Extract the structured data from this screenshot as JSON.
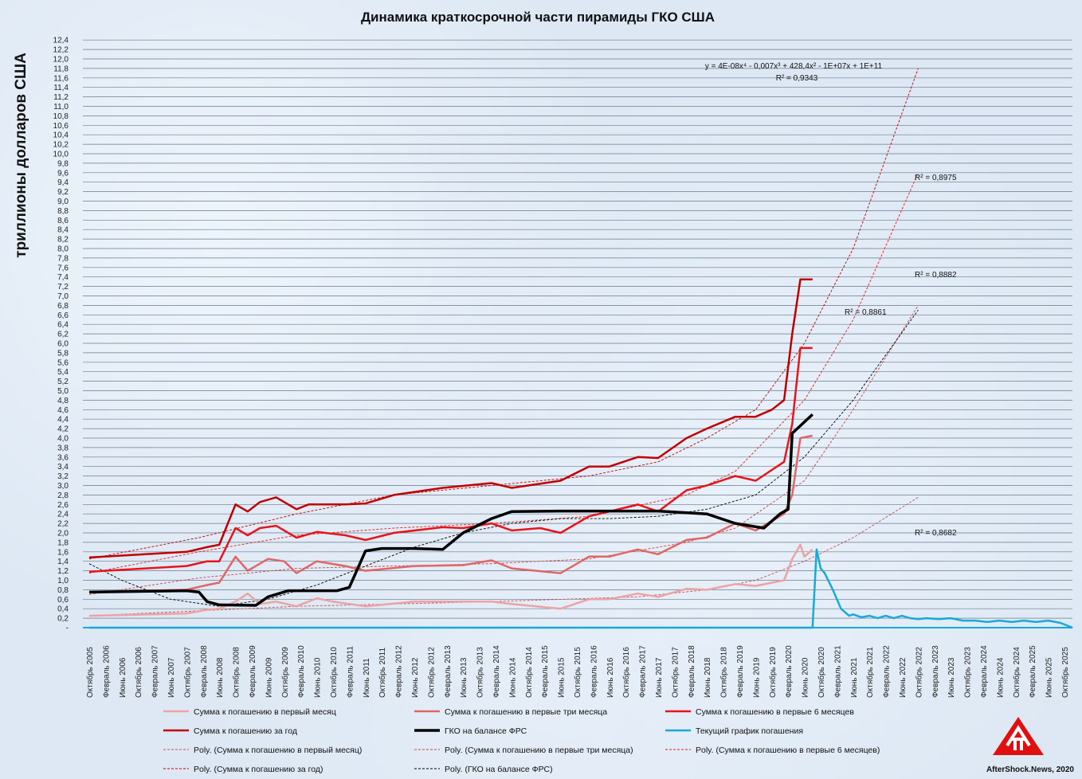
{
  "chart_data": {
    "type": "line",
    "title": "Динамика краткосрочной части пирамиды ГКО США",
    "ylabel": "триллионы долларов США",
    "xlabel": "",
    "ylim": [
      0,
      12.4
    ],
    "grid": true,
    "legend_position": "bottom",
    "yticks": [
      "-",
      "0,2",
      "0,4",
      "0,6",
      "0,8",
      "1,0",
      "1,2",
      "1,4",
      "1,6",
      "1,8",
      "2,0",
      "2,2",
      "2,4",
      "2,6",
      "2,8",
      "3,0",
      "3,2",
      "3,4",
      "3,6",
      "3,8",
      "4,0",
      "4,2",
      "4,4",
      "4,6",
      "4,8",
      "5,0",
      "5,2",
      "5,4",
      "5,6",
      "5,8",
      "6,0",
      "6,2",
      "6,4",
      "6,6",
      "6,8",
      "7,0",
      "7,2",
      "7,4",
      "7,6",
      "7,8",
      "8,0",
      "8,2",
      "8,4",
      "8,6",
      "8,8",
      "9,0",
      "9,2",
      "9,4",
      "9,6",
      "9,8",
      "10,0",
      "10,2",
      "10,4",
      "10,6",
      "10,8",
      "11,0",
      "11,2",
      "11,4",
      "11,6",
      "11,8",
      "12,0",
      "12,2",
      "12,4"
    ],
    "xticks": [
      "Октябрь 2005",
      "Февраль 2006",
      "Июнь 2006",
      "Октябрь 2006",
      "Февраль 2007",
      "Июнь 2007",
      "Октябрь 2007",
      "Февраль 2008",
      "Июнь 2008",
      "Октябрь 2008",
      "Февраль 2009",
      "Июнь 2009",
      "Октябрь 2009",
      "Февраль 2010",
      "Июнь 2010",
      "Октябрь 2010",
      "Февраль 2011",
      "Июнь 2011",
      "Октябрь 2011",
      "Февраль 2012",
      "Июнь 2012",
      "Октябрь 2012",
      "Февраль 2013",
      "Июнь 2013",
      "Октябрь 2013",
      "Февраль 2014",
      "Июнь 2014",
      "Октябрь 2014",
      "Февраль 2015",
      "Июнь 2015",
      "Октябрь 2015",
      "Февраль 2016",
      "Июнь 2016",
      "Октябрь 2016",
      "Февраль 2017",
      "Июнь 2017",
      "Октябрь 2017",
      "Февраль 2018",
      "Июнь 2018",
      "Октябрь 2018",
      "Февраль 2019",
      "Июнь 2019",
      "Октябрь 2019",
      "Февраль 2020",
      "Июнь 2020",
      "Октябрь 2020",
      "Февраль 2021",
      "Июнь 2021",
      "Октябрь 2021",
      "Февраль 2022",
      "Июнь 2022",
      "Октябрь 2022",
      "Февраль 2023",
      "Июнь 2023",
      "Октябрь 2023",
      "Февраль 2024",
      "Июнь 2024",
      "Октябрь 2024",
      "Февраль 2025",
      "Июнь 2025",
      "Октябрь 2025"
    ],
    "series": [
      {
        "name": "Сумма к погашению в первый месяц",
        "color": "#eba3a3",
        "width": 2.5,
        "points": [
          [
            "2005-10",
            0.25
          ],
          [
            "2007-10",
            0.3
          ],
          [
            "2008-03",
            0.38
          ],
          [
            "2008-06",
            0.4
          ],
          [
            "2008-10",
            0.55
          ],
          [
            "2009-01",
            0.72
          ],
          [
            "2009-04",
            0.5
          ],
          [
            "2009-08",
            0.55
          ],
          [
            "2010-01",
            0.45
          ],
          [
            "2010-06",
            0.62
          ],
          [
            "2010-10",
            0.55
          ],
          [
            "2011-06",
            0.45
          ],
          [
            "2012-06",
            0.55
          ],
          [
            "2013-06",
            0.55
          ],
          [
            "2014-01",
            0.55
          ],
          [
            "2014-06",
            0.5
          ],
          [
            "2015-06",
            0.4
          ],
          [
            "2016-01",
            0.6
          ],
          [
            "2016-06",
            0.6
          ],
          [
            "2017-01",
            0.72
          ],
          [
            "2017-06",
            0.65
          ],
          [
            "2018-01",
            0.82
          ],
          [
            "2018-06",
            0.8
          ],
          [
            "2019-01",
            0.92
          ],
          [
            "2019-06",
            0.88
          ],
          [
            "2020-01",
            1.0
          ],
          [
            "2020-03",
            1.45
          ],
          [
            "2020-05",
            1.75
          ],
          [
            "2020-06",
            1.5
          ],
          [
            "2020-08",
            1.65
          ]
        ]
      },
      {
        "name": "Сумма к погашению в первые три месяца",
        "color": "#e06666",
        "width": 2.5,
        "points": [
          [
            "2005-10",
            0.75
          ],
          [
            "2007-10",
            0.8
          ],
          [
            "2008-03",
            0.9
          ],
          [
            "2008-06",
            0.95
          ],
          [
            "2008-10",
            1.5
          ],
          [
            "2009-01",
            1.2
          ],
          [
            "2009-06",
            1.45
          ],
          [
            "2009-10",
            1.4
          ],
          [
            "2010-01",
            1.15
          ],
          [
            "2010-06",
            1.4
          ],
          [
            "2011-01",
            1.3
          ],
          [
            "2011-06",
            1.2
          ],
          [
            "2012-06",
            1.3
          ],
          [
            "2013-06",
            1.32
          ],
          [
            "2014-01",
            1.42
          ],
          [
            "2014-06",
            1.25
          ],
          [
            "2015-06",
            1.15
          ],
          [
            "2016-01",
            1.5
          ],
          [
            "2016-06",
            1.5
          ],
          [
            "2017-01",
            1.65
          ],
          [
            "2017-06",
            1.55
          ],
          [
            "2018-01",
            1.85
          ],
          [
            "2018-06",
            1.9
          ],
          [
            "2019-01",
            2.2
          ],
          [
            "2019-06",
            2.05
          ],
          [
            "2020-01",
            2.4
          ],
          [
            "2020-03",
            2.8
          ],
          [
            "2020-05",
            4.0
          ],
          [
            "2020-08",
            4.05
          ]
        ]
      },
      {
        "name": "Сумма к погашению в первые 6 месяцев",
        "color": "#e8141b",
        "width": 2.5,
        "points": [
          [
            "2005-10",
            1.18
          ],
          [
            "2007-10",
            1.3
          ],
          [
            "2008-03",
            1.4
          ],
          [
            "2008-06",
            1.4
          ],
          [
            "2008-10",
            2.1
          ],
          [
            "2009-01",
            1.95
          ],
          [
            "2009-04",
            2.1
          ],
          [
            "2009-08",
            2.15
          ],
          [
            "2010-01",
            1.9
          ],
          [
            "2010-06",
            2.02
          ],
          [
            "2011-01",
            1.95
          ],
          [
            "2011-06",
            1.85
          ],
          [
            "2012-01",
            2.0
          ],
          [
            "2013-01",
            2.12
          ],
          [
            "2013-06",
            2.1
          ],
          [
            "2014-01",
            2.2
          ],
          [
            "2014-06",
            2.05
          ],
          [
            "2015-01",
            2.1
          ],
          [
            "2015-06",
            2.0
          ],
          [
            "2016-01",
            2.35
          ],
          [
            "2016-06",
            2.45
          ],
          [
            "2017-01",
            2.6
          ],
          [
            "2017-06",
            2.45
          ],
          [
            "2018-01",
            2.9
          ],
          [
            "2018-06",
            3.0
          ],
          [
            "2019-01",
            3.2
          ],
          [
            "2019-06",
            3.1
          ],
          [
            "2020-01",
            3.5
          ],
          [
            "2020-03",
            4.3
          ],
          [
            "2020-05",
            5.9
          ],
          [
            "2020-08",
            5.9
          ]
        ]
      },
      {
        "name": "Сумма к погашению за год",
        "color": "#c00000",
        "width": 2.5,
        "points": [
          [
            "2005-10",
            1.48
          ],
          [
            "2007-10",
            1.6
          ],
          [
            "2008-03",
            1.7
          ],
          [
            "2008-06",
            1.75
          ],
          [
            "2008-10",
            2.6
          ],
          [
            "2009-01",
            2.45
          ],
          [
            "2009-04",
            2.65
          ],
          [
            "2009-08",
            2.75
          ],
          [
            "2010-01",
            2.5
          ],
          [
            "2010-04",
            2.6
          ],
          [
            "2011-01",
            2.6
          ],
          [
            "2011-06",
            2.62
          ],
          [
            "2012-01",
            2.8
          ],
          [
            "2013-01",
            2.95
          ],
          [
            "2014-01",
            3.05
          ],
          [
            "2014-06",
            2.95
          ],
          [
            "2015-06",
            3.1
          ],
          [
            "2016-01",
            3.4
          ],
          [
            "2016-06",
            3.4
          ],
          [
            "2017-01",
            3.6
          ],
          [
            "2017-06",
            3.58
          ],
          [
            "2018-01",
            4.0
          ],
          [
            "2018-06",
            4.2
          ],
          [
            "2019-01",
            4.45
          ],
          [
            "2019-06",
            4.45
          ],
          [
            "2019-10",
            4.6
          ],
          [
            "2020-01",
            4.8
          ],
          [
            "2020-03",
            6.2
          ],
          [
            "2020-05",
            7.35
          ],
          [
            "2020-08",
            7.35
          ]
        ]
      },
      {
        "name": "ГКО на балансе ФРС",
        "color": "#000000",
        "width": 3.5,
        "points": [
          [
            "2005-10",
            0.75
          ],
          [
            "2007-10",
            0.78
          ],
          [
            "2008-01",
            0.75
          ],
          [
            "2008-03",
            0.55
          ],
          [
            "2008-06",
            0.48
          ],
          [
            "2009-03",
            0.47
          ],
          [
            "2009-06",
            0.65
          ],
          [
            "2009-11",
            0.78
          ],
          [
            "2010-11",
            0.78
          ],
          [
            "2011-02",
            0.85
          ],
          [
            "2011-06",
            1.62
          ],
          [
            "2011-10",
            1.67
          ],
          [
            "2012-06",
            1.67
          ],
          [
            "2013-01",
            1.65
          ],
          [
            "2013-06",
            2.0
          ],
          [
            "2014-01",
            2.3
          ],
          [
            "2014-06",
            2.45
          ],
          [
            "2015-06",
            2.46
          ],
          [
            "2016-06",
            2.46
          ],
          [
            "2017-06",
            2.46
          ],
          [
            "2018-06",
            2.4
          ],
          [
            "2019-01",
            2.2
          ],
          [
            "2019-08",
            2.1
          ],
          [
            "2019-12",
            2.4
          ],
          [
            "2020-02",
            2.5
          ],
          [
            "2020-03",
            4.1
          ],
          [
            "2020-08",
            4.5
          ]
        ]
      },
      {
        "name": "Текущий график погашения",
        "color": "#19a9d8",
        "width": 2.5,
        "points": [
          [
            "2005-10",
            0
          ],
          [
            "2020-08",
            0
          ],
          [
            "2020-09",
            1.65
          ],
          [
            "2020-10",
            1.25
          ],
          [
            "2020-11",
            1.15
          ],
          [
            "2021-01",
            0.8
          ],
          [
            "2021-03",
            0.4
          ],
          [
            "2021-05",
            0.25
          ],
          [
            "2021-06",
            0.28
          ],
          [
            "2021-08",
            0.22
          ],
          [
            "2021-10",
            0.25
          ],
          [
            "2021-12",
            0.2
          ],
          [
            "2022-02",
            0.25
          ],
          [
            "2022-04",
            0.2
          ],
          [
            "2022-06",
            0.25
          ],
          [
            "2022-08",
            0.2
          ],
          [
            "2022-10",
            0.18
          ],
          [
            "2022-12",
            0.2
          ],
          [
            "2023-03",
            0.18
          ],
          [
            "2023-06",
            0.2
          ],
          [
            "2023-09",
            0.15
          ],
          [
            "2023-12",
            0.15
          ],
          [
            "2024-03",
            0.12
          ],
          [
            "2024-06",
            0.15
          ],
          [
            "2024-09",
            0.12
          ],
          [
            "2024-12",
            0.15
          ],
          [
            "2025-03",
            0.12
          ],
          [
            "2025-06",
            0.15
          ],
          [
            "2025-09",
            0.1
          ],
          [
            "2025-12",
            0.0
          ]
        ]
      }
    ],
    "trendlines": [
      {
        "name": "Poly. (Сумма к погашению в первый месяц)",
        "color": "#c05050",
        "r2": "R² = 0,8682",
        "points": [
          [
            "2005-10",
            0.25
          ],
          [
            "2010-01",
            0.45
          ],
          [
            "2014-01",
            0.55
          ],
          [
            "2017-01",
            0.65
          ],
          [
            "2018-06",
            0.8
          ],
          [
            "2019-06",
            1.0
          ],
          [
            "2020-06",
            1.4
          ],
          [
            "2021-06",
            1.9
          ],
          [
            "2022-10",
            2.75
          ]
        ]
      },
      {
        "name": "Poly. (Сумма к погашению в первые три месяца)",
        "color": "#d04040",
        "r2": "R² = 0,8861",
        "points": [
          [
            "2005-10",
            0.7
          ],
          [
            "2008-01",
            1.05
          ],
          [
            "2010-01",
            1.25
          ],
          [
            "2012-01",
            1.3
          ],
          [
            "2014-01",
            1.35
          ],
          [
            "2016-01",
            1.45
          ],
          [
            "2018-01",
            1.8
          ],
          [
            "2019-01",
            2.1
          ],
          [
            "2020-06",
            3.1
          ],
          [
            "2021-06",
            4.6
          ],
          [
            "2022-10",
            6.8
          ]
        ]
      },
      {
        "name": "Poly. (Сумма к погашению в первые 6 месяцев)",
        "color": "#e02020",
        "r2": "R² = 0,8882",
        "points": [
          [
            "2005-10",
            1.15
          ],
          [
            "2008-01",
            1.6
          ],
          [
            "2010-01",
            1.95
          ],
          [
            "2012-01",
            2.1
          ],
          [
            "2014-01",
            2.2
          ],
          [
            "2016-01",
            2.35
          ],
          [
            "2018-01",
            2.8
          ],
          [
            "2019-01",
            3.3
          ],
          [
            "2020-06",
            4.8
          ],
          [
            "2021-06",
            6.5
          ],
          [
            "2022-10",
            9.6
          ]
        ]
      },
      {
        "name": "Poly. (Сумма к погашению за год)",
        "color": "#c00000",
        "r2": "R² = 0,8975",
        "equation": "y = 4E-08x⁴ - 0,007x³ + 428,4x² - 1E+07x + 1E+11",
        "r2_eq": "R² = 0,9343",
        "points": [
          [
            "2005-10",
            1.45
          ],
          [
            "2008-01",
            1.9
          ],
          [
            "2010-01",
            2.4
          ],
          [
            "2012-01",
            2.8
          ],
          [
            "2014-01",
            3.0
          ],
          [
            "2016-01",
            3.2
          ],
          [
            "2017-06",
            3.5
          ],
          [
            "2018-06",
            4.0
          ],
          [
            "2019-06",
            4.6
          ],
          [
            "2020-06",
            6.0
          ],
          [
            "2021-06",
            8.0
          ],
          [
            "2022-10",
            11.8
          ]
        ]
      },
      {
        "name": "Poly. (ГКО на балансе ФРС)",
        "color": "#000000",
        "points": [
          [
            "2005-10",
            1.35
          ],
          [
            "2006-06",
            1.0
          ],
          [
            "2007-06",
            0.6
          ],
          [
            "2008-06",
            0.45
          ],
          [
            "2009-06",
            0.6
          ],
          [
            "2010-06",
            0.9
          ],
          [
            "2011-06",
            1.3
          ],
          [
            "2012-06",
            1.7
          ],
          [
            "2013-06",
            2.0
          ],
          [
            "2014-06",
            2.2
          ],
          [
            "2015-06",
            2.3
          ],
          [
            "2016-06",
            2.3
          ],
          [
            "2017-06",
            2.35
          ],
          [
            "2018-06",
            2.5
          ],
          [
            "2019-06",
            2.8
          ],
          [
            "2020-06",
            3.6
          ],
          [
            "2021-06",
            4.8
          ],
          [
            "2022-10",
            6.7
          ]
        ]
      }
    ]
  },
  "credit": "AfterShock.News, 2020"
}
